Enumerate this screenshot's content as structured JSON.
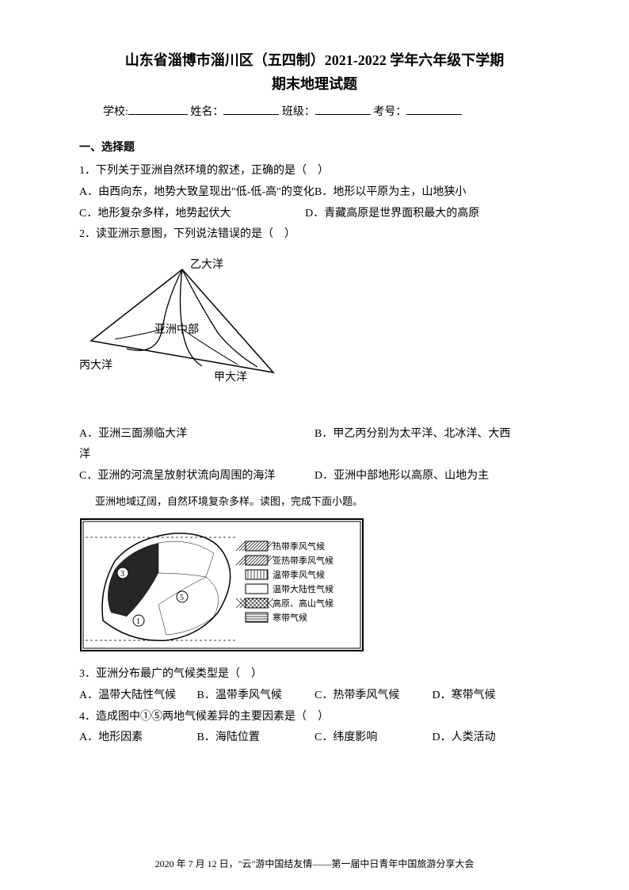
{
  "title": {
    "line1": "山东省淄博市淄川区（五四制）2021-2022 学年六年级下学期",
    "line2": "期末地理试题"
  },
  "info": {
    "school": "学校:",
    "name": "姓名：",
    "class": "班级：",
    "examno": "考号："
  },
  "section1": "一、选择题",
  "q1": {
    "stem": "1．下列关于亚洲自然环境的叙述，正确的是（　）",
    "A": "A．由西向东，地势大致呈现出\"低-低-高\"的变化",
    "B": "B．地形以平原为主，山地狭小",
    "C": "C．地形复杂多样，地势起伏大",
    "D": "D．青藏高原是世界面积最大的高原"
  },
  "q2": {
    "stem": "2．读亚洲示意图，下列说法错误的是（　）",
    "labels": {
      "top": "乙大洋",
      "center": "亚洲中部",
      "left": "丙大洋",
      "right": "甲大洋"
    },
    "A": "A．亚洲三面濒临大洋",
    "B": "B．甲乙丙分别为太平洋、北冰洋、大西",
    "Bcont": "洋",
    "C": "C．亚洲的河流呈放射状流向周围的海洋",
    "D": "D．亚洲中部地形以高原、山地为主"
  },
  "passage1": "亚洲地域辽阔，自然环境复杂多样。读图，完成下面小题。",
  "legend": {
    "items": [
      "热带季风气候",
      "亚热带季风气候",
      "温带季风气候",
      "温带大陆性气候",
      "高原、高山气候",
      "寒带气候"
    ]
  },
  "q3": {
    "stem": "3．亚洲分布最广的气候类型是（　）",
    "A": "A．温带大陆性气候",
    "B": "B．温带季风气候",
    "C": "C．热带季风气候",
    "D": "D．寒带气候"
  },
  "q4": {
    "stem": "4．造成图中①⑤两地气候差异的主要因素是（　）",
    "A": "A．地形因素",
    "B": "B．海陆位置",
    "C": "C．纬度影响",
    "D": "D．人类活动"
  },
  "footer": "2020 年 7 月 12 日，\"云\"游中国结友情——第一届中日青年中国旅游分享大会",
  "colors": {
    "text": "#000000",
    "bg": "#ffffff",
    "stroke": "#000000"
  }
}
